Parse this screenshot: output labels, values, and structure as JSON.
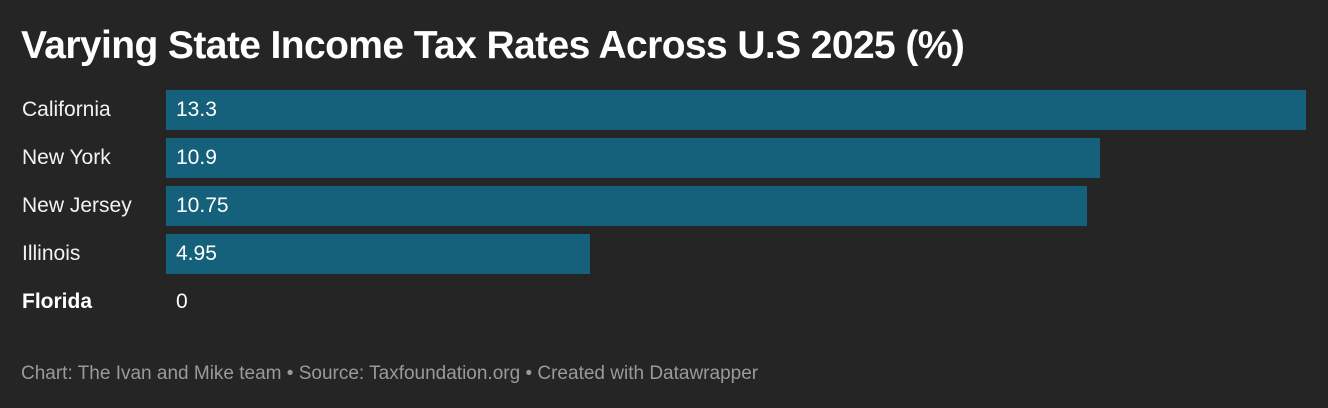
{
  "chart_data": {
    "type": "bar",
    "orientation": "horizontal",
    "title": "Varying State Income Tax Rates Across U.S 2025 (%)",
    "categories": [
      "California",
      "New York",
      "New Jersey",
      "Illinois",
      "Florida"
    ],
    "values": [
      13.3,
      10.9,
      10.75,
      4.95,
      0
    ],
    "value_labels": [
      "13.3",
      "10.9",
      "10.75",
      "4.95",
      "0"
    ],
    "highlighted": [
      "Florida"
    ],
    "xlim": [
      0,
      13.3
    ],
    "grid": false,
    "bar_color": "#15607a",
    "background": "#252525"
  },
  "footer": "Chart: The Ivan and Mike team • Source: Taxfoundation.org • Created with Datawrapper"
}
